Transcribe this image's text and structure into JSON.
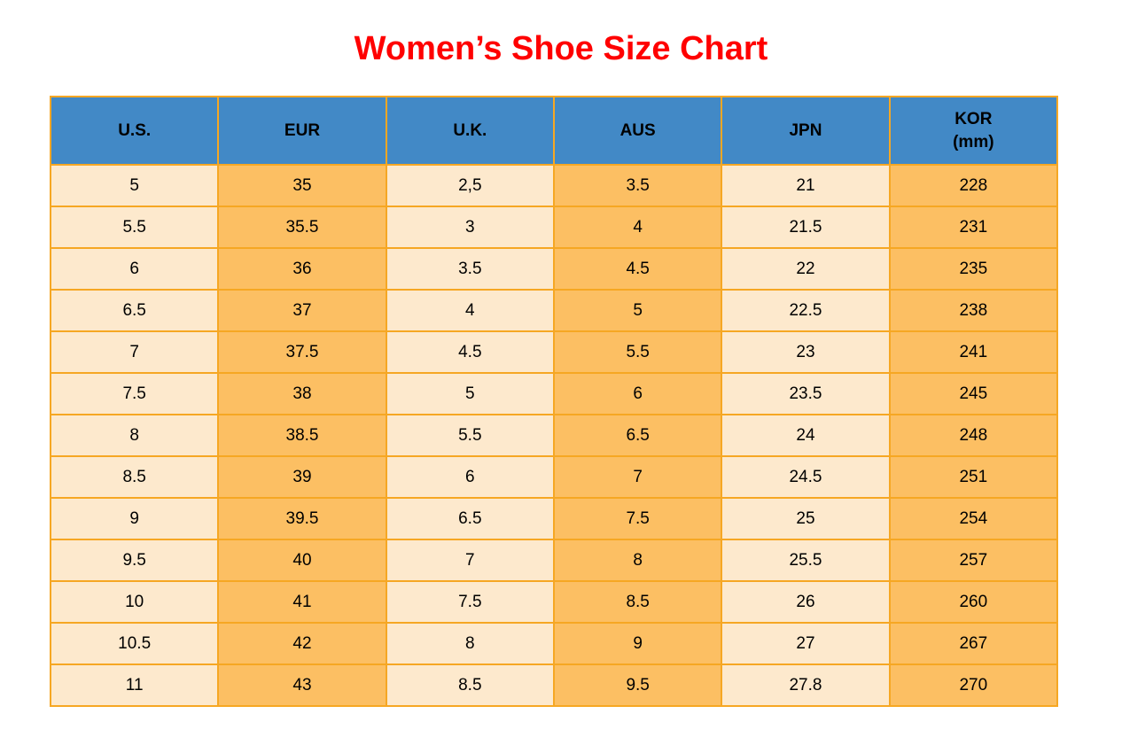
{
  "chart_data": {
    "type": "table",
    "title": "Women’s Shoe Size Chart",
    "columns": [
      {
        "label": "U.S.",
        "sublabel": ""
      },
      {
        "label": "EUR",
        "sublabel": ""
      },
      {
        "label": "U.K.",
        "sublabel": ""
      },
      {
        "label": "AUS",
        "sublabel": ""
      },
      {
        "label": "JPN",
        "sublabel": ""
      },
      {
        "label": "KOR",
        "sublabel": "(mm)"
      }
    ],
    "rows": [
      [
        "5",
        "35",
        "2,5",
        "3.5",
        "21",
        "228"
      ],
      [
        "5.5",
        "35.5",
        "3",
        "4",
        "21.5",
        "231"
      ],
      [
        "6",
        "36",
        "3.5",
        "4.5",
        "22",
        "235"
      ],
      [
        "6.5",
        "37",
        "4",
        "5",
        "22.5",
        "238"
      ],
      [
        "7",
        "37.5",
        "4.5",
        "5.5",
        "23",
        "241"
      ],
      [
        "7.5",
        "38",
        "5",
        "6",
        "23.5",
        "245"
      ],
      [
        "8",
        "38.5",
        "5.5",
        "6.5",
        "24",
        "248"
      ],
      [
        "8.5",
        "39",
        "6",
        "7",
        "24.5",
        "251"
      ],
      [
        "9",
        "39.5",
        "6.5",
        "7.5",
        "25",
        "254"
      ],
      [
        "9.5",
        "40",
        "7",
        "8",
        "25.5",
        "257"
      ],
      [
        "10",
        "41",
        "7.5",
        "8.5",
        "26",
        "260"
      ],
      [
        "10.5",
        "42",
        "8",
        "9",
        "27",
        "267"
      ],
      [
        "11",
        "43",
        "8.5",
        "9.5",
        "27.8",
        "270"
      ]
    ],
    "layout": {
      "column_pattern": [
        "cream",
        "orange",
        "cream",
        "orange",
        "cream",
        "orange"
      ],
      "grid": "on",
      "header_style": "blue"
    }
  },
  "colors": {
    "title": "#FF0000",
    "header_bg": "#4289C6",
    "cell_cream": "#FDE9CD",
    "cell_orange": "#FCBF63",
    "border": "#F6A723",
    "text": "#000000"
  }
}
